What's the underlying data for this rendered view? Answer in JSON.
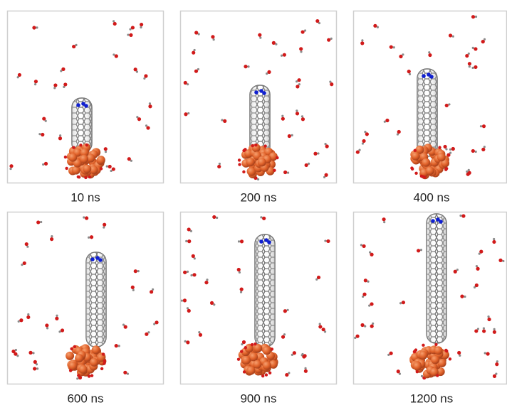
{
  "panels": [
    {
      "label": "10 ns"
    },
    {
      "label": "200 ns"
    },
    {
      "label": "400 ns"
    },
    {
      "label": "600 ns"
    },
    {
      "label": "900 ns"
    },
    {
      "label": "1200 ns"
    }
  ]
}
